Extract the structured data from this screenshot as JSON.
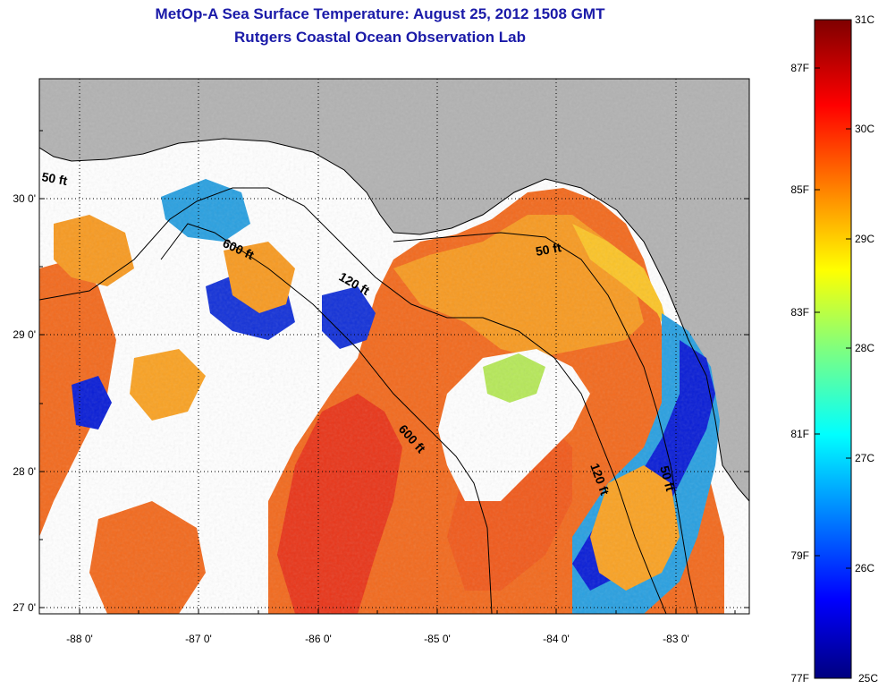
{
  "title": "MetOp-A Sea Surface Temperature:  August 25, 2012 1508 GMT",
  "subtitle": "Rutgers Coastal Ocean Observation Lab",
  "map": {
    "region": "Northeastern Gulf of Mexico / Florida Big Bend",
    "lon_range": [
      -88.33,
      -82.44
    ],
    "lat_range": [
      26.97,
      30.87
    ],
    "lon_ticks": [
      -88,
      -87,
      -86,
      -85,
      -84,
      -83
    ],
    "lon_tick_labels": [
      "-88 0'",
      "-87 0'",
      "-86 0'",
      "-85 0'",
      "-84 0'",
      "-83 0'"
    ],
    "lat_ticks": [
      27,
      28,
      29,
      30
    ],
    "lat_tick_labels": [
      "27 0'",
      "28 0'",
      "29 0'",
      "30 0'"
    ],
    "grid": "dotted",
    "land_color": "#b2b2b2",
    "nodata_color": "#ffffff",
    "contour_labels": [
      "50 ft",
      "600 ft",
      "120 ft",
      "50 ft",
      "600 ft",
      "120 ft",
      "50 ft"
    ]
  },
  "colorbar": {
    "min_c": 25,
    "max_c": 31,
    "celsius_labels": [
      "31C",
      "30C",
      "29C",
      "28C",
      "27C",
      "26C",
      "25C"
    ],
    "fahrenheit_labels": [
      "87F",
      "85F",
      "83F",
      "81F",
      "79F",
      "77F"
    ]
  }
}
